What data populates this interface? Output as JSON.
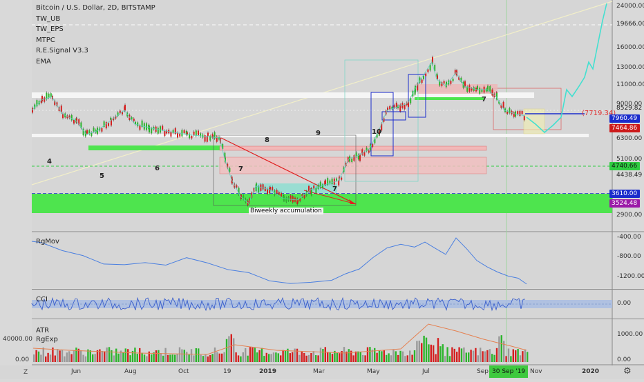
{
  "header": {
    "title": "Bitcoin / U.S. Dollar, 2D, BITSTAMP",
    "indicators": [
      "TW_UB",
      "TW_EPS",
      "MTPC",
      "R.E.Signal V3.3",
      "EMA"
    ]
  },
  "main_pane": {
    "price_ticks": [
      "24000.00",
      "16000.00",
      "13000.00",
      "11000.00",
      "9000.00",
      "6300.00",
      "5100.00",
      "2900.00"
    ],
    "price_ticks_extra": [
      "19666.00",
      "8529.82",
      "4438.49"
    ],
    "price_tags": [
      {
        "text": "7960.49",
        "color": "#1a2ccc"
      },
      {
        "text": "7464.86",
        "color": "#cc1a1a"
      },
      {
        "text": "4740.66",
        "color": "#2ecc40"
      },
      {
        "text": "3610.00",
        "color": "#1a2ccc"
      },
      {
        "text": "3524.48",
        "color": "#9b1aa8"
      }
    ],
    "wave_labels": [
      "4",
      "5",
      "6",
      "7",
      "8",
      "9",
      "10",
      "7",
      "7"
    ],
    "annotation_text": "Biweekly accumulation",
    "target_label": "(7719.34)"
  },
  "rgmov_pane": {
    "label": "RgMov",
    "ticks": [
      "-400.00",
      "-800.00",
      "-1200.00"
    ]
  },
  "cci_pane": {
    "label": "CCI",
    "ticks": [
      "0.00"
    ]
  },
  "atr_pane": {
    "labels": [
      "ATR",
      "RgExp"
    ],
    "left_ticks": [
      "40000.00",
      "0.00"
    ],
    "right_ticks": [
      "1000.00",
      "0.00"
    ]
  },
  "time_axis": {
    "labels": [
      "Jun",
      "Aug",
      "Oct",
      "19",
      "2019",
      "Mar",
      "May",
      "Jul",
      "Sep",
      "Nov",
      "2020"
    ],
    "highlight_label": "30 Sep '19"
  },
  "corner": {
    "left": "Z",
    "right_icon": "gear-icon"
  }
}
